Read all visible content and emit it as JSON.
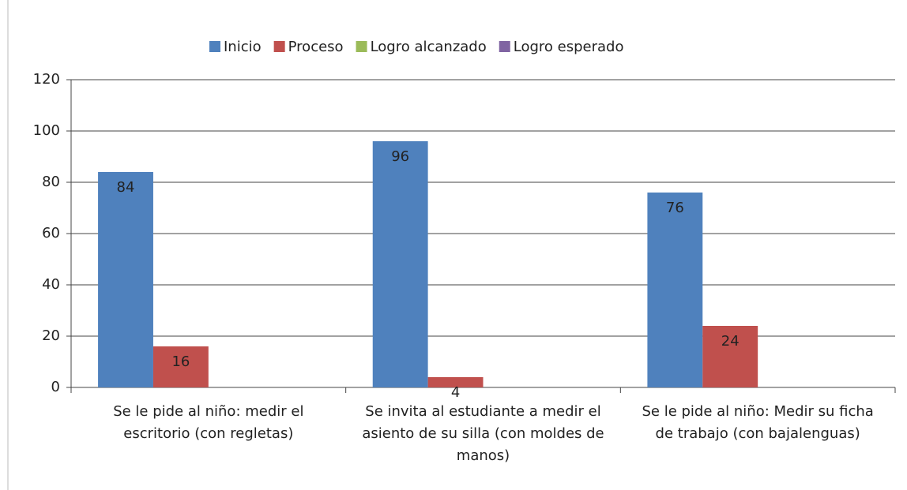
{
  "chart_data": {
    "type": "bar",
    "categories": [
      "Se le pide al niño: medir el escritorio (con regletas)",
      "Se invita al estudiante a medir el asiento de su silla (con moldes de manos)",
      "Se le pide al niño: Medir su ficha de trabajo (con bajalenguas)"
    ],
    "series": [
      {
        "name": "Inicio",
        "color": "#4f81bd",
        "values": [
          84,
          96,
          76
        ]
      },
      {
        "name": "Proceso",
        "color": "#c0504d",
        "values": [
          16,
          4,
          24
        ]
      },
      {
        "name": "Logro alcanzado",
        "color": "#9bbb59",
        "values": [
          null,
          null,
          null
        ]
      },
      {
        "name": "Logro esperado",
        "color": "#8064a2",
        "values": [
          null,
          null,
          null
        ]
      }
    ],
    "ylim": [
      0,
      120
    ],
    "yticks": [
      0,
      20,
      40,
      60,
      80,
      100,
      120
    ],
    "grid": true,
    "legend": "top"
  }
}
